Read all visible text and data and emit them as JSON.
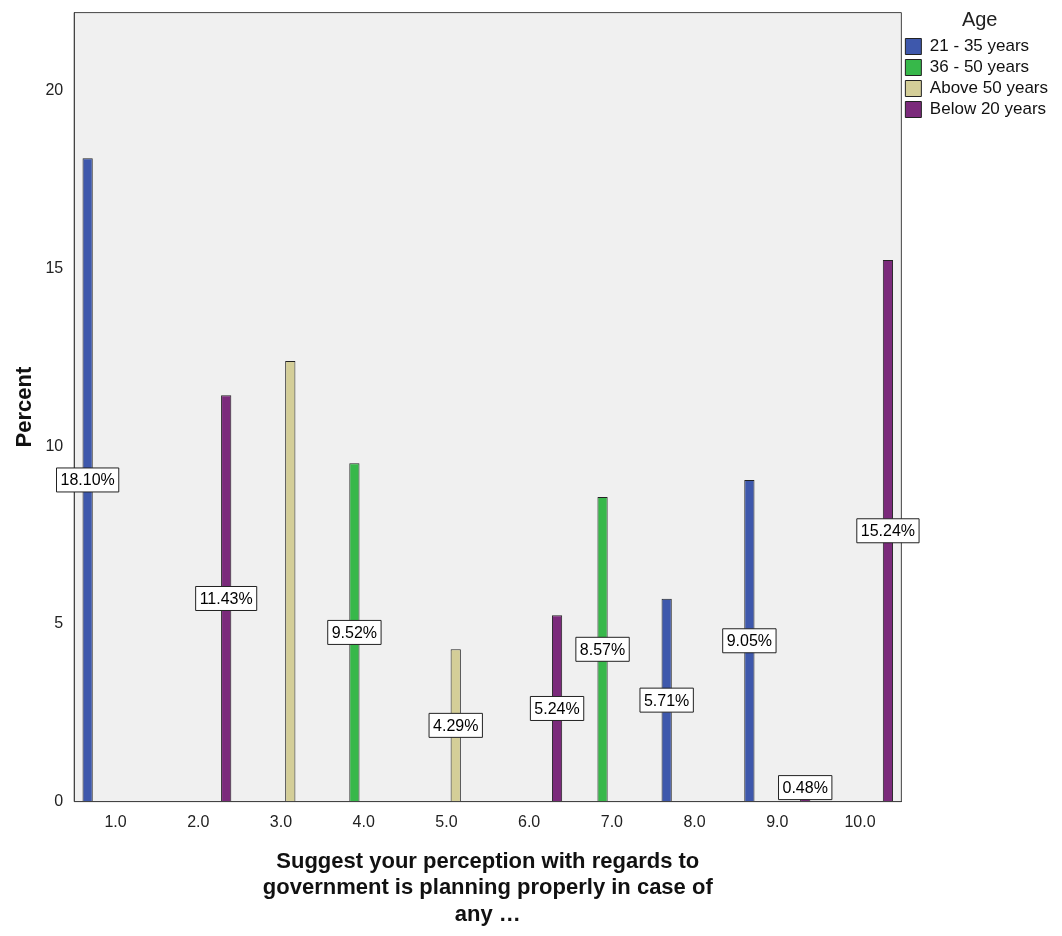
{
  "chart_data": {
    "type": "bar",
    "xlabel": "Suggest your perception with regards to government is planning properly in case of any …",
    "ylabel": "Percent",
    "legend_title": "Age",
    "legend": "top right",
    "grid": false,
    "categories": [
      "1.0",
      "2.0",
      "3.0",
      "4.0",
      "5.0",
      "6.0",
      "7.0",
      "8.0",
      "9.0",
      "10.0"
    ],
    "ylim": [
      0,
      22.2
    ],
    "yticks": [
      0,
      5,
      10,
      15,
      20
    ],
    "series": [
      {
        "name": "21 - 35 years",
        "color": "#3e58ac",
        "values": [
          18.1,
          null,
          null,
          null,
          null,
          null,
          null,
          5.71,
          9.05,
          null
        ],
        "value_labels": [
          "18.10%",
          null,
          null,
          null,
          null,
          null,
          null,
          "5.71%",
          "9.05%",
          null
        ]
      },
      {
        "name": "36 - 50 years",
        "color": "#37b84a",
        "values": [
          null,
          null,
          null,
          9.52,
          null,
          null,
          8.57,
          null,
          null,
          null
        ],
        "value_labels": [
          null,
          null,
          null,
          "9.52%",
          null,
          null,
          "8.57%",
          null,
          null,
          null
        ]
      },
      {
        "name": "Above 50 years",
        "color": "#d4ce98",
        "values": [
          null,
          null,
          12.4,
          null,
          4.29,
          null,
          null,
          null,
          null,
          null
        ],
        "value_labels": [
          null,
          null,
          null,
          null,
          "4.29%",
          null,
          null,
          null,
          null,
          null
        ]
      },
      {
        "name": "Below 20 years",
        "color": "#7b2a7b",
        "values": [
          null,
          11.43,
          null,
          null,
          null,
          5.24,
          null,
          null,
          0.48,
          15.24
        ],
        "value_labels": [
          null,
          "11.43%",
          null,
          null,
          null,
          "5.24%",
          null,
          null,
          "0.48%",
          "15.24%"
        ]
      }
    ]
  }
}
